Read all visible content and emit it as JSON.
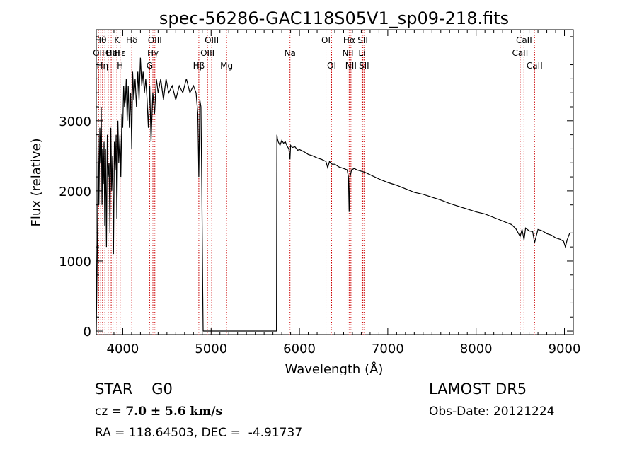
{
  "chart_data": {
    "type": "line",
    "title": "spec-56286-GAC118S05V1_sp09-218.fits",
    "xlabel": "Wavelength (Å)",
    "ylabel": "Flux (relative)",
    "xlim": [
      3700,
      9100
    ],
    "ylim": [
      -50,
      4300
    ],
    "xticks": [
      4000,
      5000,
      6000,
      7000,
      8000,
      9000
    ],
    "yticks": [
      0,
      1000,
      2000,
      3000
    ],
    "line_color": "#000000",
    "marker_color": "#cc0000",
    "series": [
      {
        "x": [
          3700,
          3712,
          3722,
          3730,
          3740,
          3748,
          3756,
          3765,
          3772,
          3780,
          3788,
          3796,
          3805,
          3815,
          3825,
          3835,
          3845,
          3855,
          3865,
          3875,
          3885,
          3895,
          3905,
          3915,
          3925,
          3933,
          3945,
          3955,
          3968,
          3978,
          3990,
          4000,
          4010,
          4020,
          4030,
          4040,
          4050,
          4062,
          4075,
          4090,
          4101,
          4112,
          4125,
          4140,
          4155,
          4170,
          4185,
          4200,
          4215,
          4230,
          4245,
          4260,
          4275,
          4290,
          4305,
          4320,
          4340,
          4360,
          4380,
          4400,
          4430,
          4460,
          4490,
          4520,
          4560,
          4600,
          4640,
          4680,
          4720,
          4760,
          4800,
          4830,
          4850,
          4861,
          4872,
          4885,
          4895,
          4905,
          4910,
          5740,
          5745,
          5750,
          5760,
          5780,
          5800,
          5820,
          5840,
          5860,
          5880,
          5893,
          5900,
          5920,
          5950,
          5980,
          6000,
          6050,
          6100,
          6150,
          6200,
          6250,
          6300,
          6320,
          6340,
          6370,
          6400,
          6450,
          6500,
          6540,
          6555,
          6563,
          6572,
          6590,
          6620,
          6650,
          6700,
          6750,
          6800,
          6900,
          7000,
          7100,
          7200,
          7300,
          7400,
          7500,
          7600,
          7700,
          7800,
          7900,
          8000,
          8100,
          8200,
          8300,
          8400,
          8450,
          8498,
          8520,
          8542,
          8560,
          8600,
          8640,
          8662,
          8700,
          8750,
          8800,
          8850,
          8900,
          8950,
          8990,
          9010,
          9030,
          9060
        ],
        "y": [
          0,
          1200,
          2800,
          1800,
          2900,
          2400,
          3200,
          1800,
          2600,
          2100,
          2700,
          1500,
          2600,
          1200,
          2800,
          2200,
          2400,
          1400,
          2900,
          2000,
          2500,
          1100,
          2700,
          2300,
          2800,
          1600,
          3000,
          2400,
          2800,
          2200,
          3100,
          2900,
          3500,
          3200,
          3300,
          3600,
          3000,
          3500,
          2900,
          3400,
          2600,
          3700,
          3300,
          3600,
          3200,
          3700,
          3300,
          3900,
          3500,
          3700,
          3400,
          3600,
          3300,
          2900,
          3500,
          2700,
          3400,
          3100,
          3600,
          3400,
          3600,
          3300,
          3600,
          3400,
          3500,
          3300,
          3500,
          3400,
          3600,
          3400,
          3500,
          3400,
          3100,
          2200,
          3300,
          3200,
          2000,
          600,
          0,
          0,
          2800,
          2750,
          2700,
          2650,
          2720,
          2680,
          2700,
          2640,
          2600,
          2450,
          2650,
          2620,
          2630,
          2580,
          2590,
          2560,
          2520,
          2500,
          2470,
          2450,
          2420,
          2330,
          2420,
          2380,
          2380,
          2340,
          2320,
          2300,
          2200,
          1700,
          2200,
          2300,
          2320,
          2300,
          2280,
          2260,
          2230,
          2170,
          2120,
          2080,
          2030,
          1980,
          1950,
          1910,
          1870,
          1820,
          1780,
          1740,
          1700,
          1670,
          1620,
          1570,
          1520,
          1460,
          1350,
          1450,
          1300,
          1470,
          1430,
          1420,
          1260,
          1450,
          1430,
          1390,
          1370,
          1330,
          1310,
          1280,
          1200,
          1300,
          1400
        ]
      }
    ],
    "lines": [
      {
        "wave": 3727,
        "label": "OII",
        "row": 2
      },
      {
        "wave": 3750,
        "label": "Hθ",
        "row": 1
      },
      {
        "wave": 3771,
        "label": "Hη",
        "row": 3
      },
      {
        "wave": 3798,
        "label": "",
        "row": 0
      },
      {
        "wave": 3835,
        "label": "",
        "row": 0
      },
      {
        "wave": 3869,
        "label": "OII",
        "row": 2
      },
      {
        "wave": 3889,
        "label": "HeI",
        "row": 2
      },
      {
        "wave": 3934,
        "label": "K",
        "row": 1
      },
      {
        "wave": 3970,
        "label": "H",
        "row": 3
      },
      {
        "wave": 3970,
        "label": "Hε",
        "row": 2
      },
      {
        "wave": 4102,
        "label": "Hδ",
        "row": 1
      },
      {
        "wave": 4304,
        "label": "G",
        "row": 3
      },
      {
        "wave": 4341,
        "label": "Hγ",
        "row": 2
      },
      {
        "wave": 4363,
        "label": "OIII",
        "row": 1
      },
      {
        "wave": 4861,
        "label": "Hβ",
        "row": 3
      },
      {
        "wave": 4959,
        "label": "OIII",
        "row": 2
      },
      {
        "wave": 5007,
        "label": "OIII",
        "row": 1
      },
      {
        "wave": 5175,
        "label": "Mg",
        "row": 3
      },
      {
        "wave": 5893,
        "label": "Na",
        "row": 2
      },
      {
        "wave": 6300,
        "label": "OI",
        "row": 1
      },
      {
        "wave": 6364,
        "label": "OI",
        "row": 3
      },
      {
        "wave": 6548,
        "label": "NII",
        "row": 2
      },
      {
        "wave": 6563,
        "label": "Hα",
        "row": 1
      },
      {
        "wave": 6583,
        "label": "NII",
        "row": 3
      },
      {
        "wave": 6708,
        "label": "Li",
        "row": 2
      },
      {
        "wave": 6717,
        "label": "SII",
        "row": 1
      },
      {
        "wave": 6731,
        "label": "SII",
        "row": 3
      },
      {
        "wave": 8498,
        "label": "CaII",
        "row": 2
      },
      {
        "wave": 8542,
        "label": "CaII",
        "row": 1
      },
      {
        "wave": 8662,
        "label": "CaII",
        "row": 3
      }
    ]
  },
  "info": {
    "class_label": "STAR",
    "subclass": "G0",
    "survey": "LAMOST DR5",
    "cz_prefix": "cz = ",
    "cz_value": "7.0 ± 5.6 km/s",
    "obs_date": "Obs-Date: 20121224",
    "radec": "RA = 118.64503, DEC =  -4.91737"
  }
}
